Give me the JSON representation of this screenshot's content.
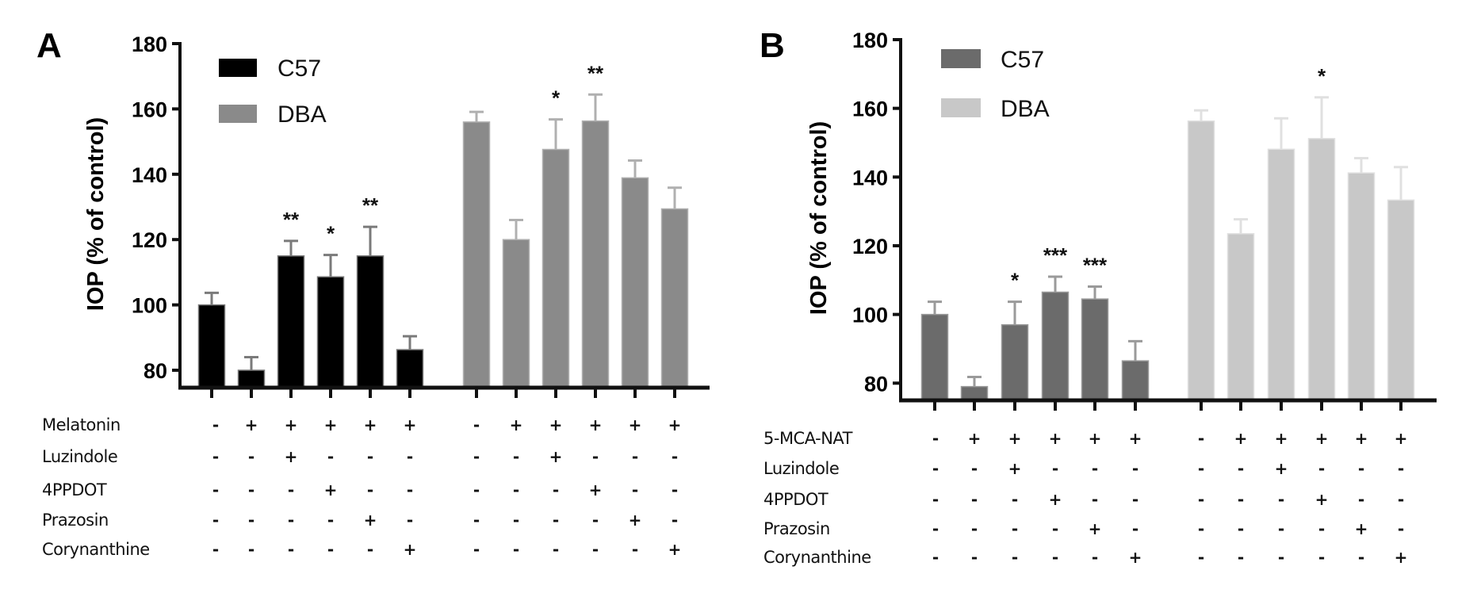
{
  "figure": {
    "colors": {
      "A_C57": "#000000",
      "A_DBA": "#8a8a8a",
      "B_C57": "#6b6b6b",
      "B_DBA": "#c8c8c8",
      "errorbar_A_C57": "#7a7a7a",
      "errorbar_A_DBA": "#b0b0b0",
      "errorbar_B_C57": "#9a9a9a",
      "errorbar_B_DBA": "#e0e0e0"
    }
  },
  "chart_data": [
    {
      "panel": "A",
      "type": "bar",
      "title": "",
      "xlabel": "",
      "ylabel": "IOP (% of control)",
      "ylim": [
        74,
        180
      ],
      "yticks": [
        80,
        100,
        120,
        140,
        160,
        180
      ],
      "grid": false,
      "legend": {
        "placement": "top-left",
        "entries": [
          "C57",
          "DBA"
        ]
      },
      "treatment_rows": [
        {
          "label": "Melatonin",
          "values": [
            "-",
            "+",
            "+",
            "+",
            "+",
            "+",
            "-",
            "+",
            "+",
            "+",
            "+",
            "+"
          ]
        },
        {
          "label": "Luzindole",
          "values": [
            "-",
            "-",
            "+",
            "-",
            "-",
            "-",
            "-",
            "-",
            "+",
            "-",
            "-",
            "-"
          ]
        },
        {
          "label": "4PPDOT",
          "values": [
            "-",
            "-",
            "-",
            "+",
            "-",
            "-",
            "-",
            "-",
            "-",
            "+",
            "-",
            "-"
          ]
        },
        {
          "label": "Prazosin",
          "values": [
            "-",
            "-",
            "-",
            "-",
            "+",
            "-",
            "-",
            "-",
            "-",
            "-",
            "+",
            "-"
          ]
        },
        {
          "label": "Corynanthine",
          "values": [
            "-",
            "-",
            "-",
            "-",
            "-",
            "+",
            "-",
            "-",
            "-",
            "-",
            "-",
            "+"
          ]
        }
      ],
      "series": [
        {
          "name": "C57",
          "values": [
            100,
            80,
            115,
            108.6,
            115,
            86.3
          ],
          "error_upper": [
            103.7,
            84,
            119.6,
            115.3,
            123.9,
            90.4
          ],
          "significance": [
            "",
            "",
            "**",
            "*",
            "**",
            ""
          ]
        },
        {
          "name": "DBA",
          "values": [
            156,
            120,
            147.6,
            156.3,
            138.9,
            129.4
          ],
          "error_upper": [
            159.1,
            126,
            156.8,
            164.4,
            144.2,
            135.9
          ],
          "significance": [
            "",
            "",
            "*",
            "**",
            "",
            ""
          ]
        }
      ]
    },
    {
      "panel": "B",
      "type": "bar",
      "title": "",
      "xlabel": "",
      "ylabel": "IOP (% of control)",
      "ylim": [
        75,
        180
      ],
      "yticks": [
        80,
        100,
        120,
        140,
        160,
        180
      ],
      "grid": false,
      "legend": {
        "placement": "top-left",
        "entries": [
          "C57",
          "DBA"
        ]
      },
      "treatment_rows": [
        {
          "label": "5-MCA-NAT",
          "values": [
            "-",
            "+",
            "+",
            "+",
            "+",
            "+",
            "-",
            "+",
            "+",
            "+",
            "+",
            "+"
          ]
        },
        {
          "label": "Luzindole",
          "values": [
            "-",
            "-",
            "+",
            "-",
            "-",
            "-",
            "-",
            "-",
            "+",
            "-",
            "-",
            "-"
          ]
        },
        {
          "label": "4PPDOT",
          "values": [
            "-",
            "-",
            "-",
            "+",
            "-",
            "-",
            "-",
            "-",
            "-",
            "+",
            "-",
            "-"
          ]
        },
        {
          "label": "Prazosin",
          "values": [
            "-",
            "-",
            "-",
            "-",
            "+",
            "-",
            "-",
            "-",
            "-",
            "-",
            "+",
            "-"
          ]
        },
        {
          "label": "Corynanthine",
          "values": [
            "-",
            "-",
            "-",
            "-",
            "-",
            "+",
            "-",
            "-",
            "-",
            "-",
            "-",
            "+"
          ]
        }
      ],
      "series": [
        {
          "name": "C57",
          "values": [
            100,
            79,
            97,
            106.5,
            104.5,
            86.5
          ],
          "error_upper": [
            103.7,
            81.8,
            103.7,
            111,
            108.1,
            92.2
          ],
          "significance": [
            "",
            "",
            "*",
            "***",
            "***",
            ""
          ]
        },
        {
          "name": "DBA",
          "values": [
            156.3,
            123.5,
            148.1,
            151.2,
            141.2,
            133.3
          ],
          "error_upper": [
            159.4,
            127.7,
            157.1,
            163.2,
            145.5,
            142.9
          ],
          "significance": [
            "",
            "",
            "",
            "*",
            "",
            ""
          ]
        }
      ]
    }
  ],
  "panels": [
    {
      "letter": "A"
    },
    {
      "letter": "B"
    }
  ]
}
